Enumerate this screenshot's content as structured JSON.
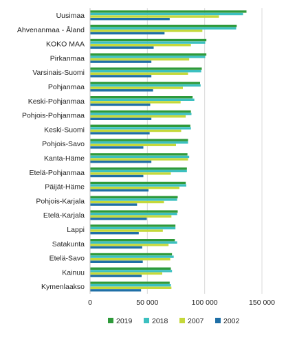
{
  "chart_data": {
    "type": "bar",
    "orientation": "horizontal",
    "categories": [
      "Uusimaa",
      "Ahvenanmaa - Åland",
      "KOKO MAA",
      "Pirkanmaa",
      "Varsinais-Suomi",
      "Pohjanmaa",
      "Keski-Pohjanmaa",
      "Pohjois-Pohjanmaa",
      "Keski-Suomi",
      "Pohjois-Savo",
      "Kanta-Häme",
      "Etelä-Pohjanmaa",
      "Päijät-Häme",
      "Pohjois-Karjala",
      "Etelä-Karjala",
      "Lappi",
      "Satakunta",
      "Etelä-Savo",
      "Kainuu",
      "Kymenlaakso"
    ],
    "series": [
      {
        "name": "2019",
        "color": "#2e9a3a",
        "values": [
          136500,
          128000,
          101500,
          101500,
          97500,
          96000,
          89500,
          88000,
          87500,
          85500,
          85000,
          84500,
          83500,
          76500,
          76500,
          74500,
          74000,
          71500,
          70500,
          69500
        ]
      },
      {
        "name": "2018",
        "color": "#3cc0c0",
        "values": [
          133500,
          127500,
          100500,
          100500,
          97000,
          96500,
          91000,
          88500,
          88000,
          85500,
          86500,
          84500,
          84000,
          76000,
          76000,
          74500,
          76000,
          73000,
          71500,
          70500
        ]
      },
      {
        "name": "2007",
        "color": "#c5d83a",
        "values": [
          112500,
          98000,
          88000,
          86500,
          85500,
          81000,
          79000,
          83500,
          79500,
          75000,
          85500,
          70500,
          78000,
          64500,
          71000,
          63500,
          68500,
          70000,
          63000,
          71000
        ]
      },
      {
        "name": "2002",
        "color": "#1f6fa6",
        "values": [
          69500,
          65000,
          55500,
          53500,
          53500,
          55000,
          52500,
          53500,
          52000,
          46500,
          53500,
          46500,
          51000,
          41000,
          49500,
          42500,
          45500,
          46000,
          45000,
          44500
        ]
      }
    ],
    "xlim": [
      0,
      150000
    ],
    "xticks": [
      0,
      50000,
      100000,
      150000
    ],
    "xtick_labels": [
      "0",
      "50 000",
      "100 000",
      "150 000"
    ],
    "title": "",
    "xlabel": "",
    "ylabel": "",
    "grid": true,
    "legend": "bottom"
  }
}
